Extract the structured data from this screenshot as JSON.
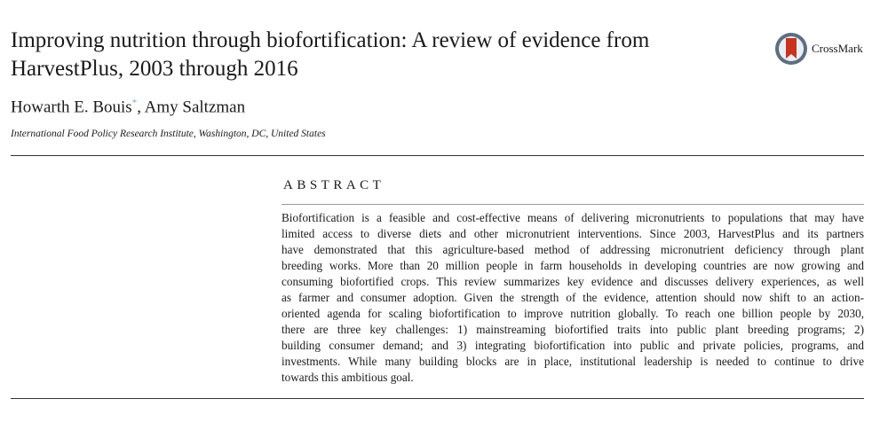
{
  "title_lines": [
    "Improving nutrition through biofortification: A review of evidence from",
    "HarvestPlus, 2003 through 2016"
  ],
  "authors": {
    "first": "Howarth E. Bouis",
    "marker": "*",
    "rest": ", Amy Saltzman"
  },
  "affiliation": "International Food Policy Research Institute, Washington, DC, United States",
  "crossmark": "CrossMark",
  "abstract": {
    "heading": "ABSTRACT",
    "lines": [
      "Biofortification is a feasible and cost-effective means of delivering micronutrients to populations that may have",
      "limited access to diverse diets and other micronutrient interventions. Since 2003, HarvestPlus and its partners",
      "have demonstrated that this agriculture-based method of addressing micronutrient deficiency through plant",
      "breeding works. More than 20 million people in farm households in developing countries are now growing and",
      "consuming biofortified crops. This review summarizes key evidence and discusses delivery experiences, as well",
      "as farmer and consumer adoption. Given the strength of the evidence, attention should now shift to an action-",
      "oriented agenda for scaling biofortification to improve nutrition globally. To reach one billion people by 2030,",
      "there are three key challenges: 1) mainstreaming biofortified traits into public plant breeding programs; 2)",
      "building consumer demand; and 3) integrating biofortification into public and private policies, programs, and",
      "investments. While many building blocks are in place, institutional leadership is needed to continue to drive",
      "towards this ambitious goal."
    ]
  }
}
